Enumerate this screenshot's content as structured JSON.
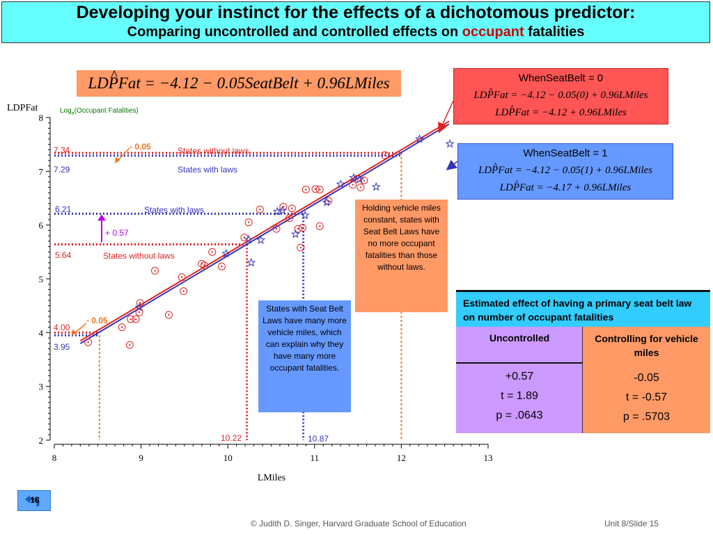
{
  "title": {
    "line1": "Developing your instinct for the effects of a dichotomous predictor:",
    "line2_before": "Comparing uncontrolled and controlled effects on ",
    "line2_accent": "occupant",
    "line2_after": " fatalities"
  },
  "equations": {
    "main": {
      "lhs": "LDPFat",
      "rhs": " = −4.12 − 0.05SeatBelt + 0.96LMiles"
    },
    "no_law": {
      "header": "WhenSeatBelt = 0",
      "line1_rhs": " = −4.12 − 0.05(0) + 0.96LMiles",
      "line2_rhs": " = −4.12 + 0.96LMiles"
    },
    "law": {
      "header": "WhenSeatBelt = 1",
      "line1_rhs": " = −4.12 − 0.05(1) + 0.96LMiles",
      "line2_rhs": " = −4.17 + 0.96LMiles"
    }
  },
  "notes": {
    "holding": "Holding vehicle miles constant, states with Seat Belt Laws have no more occupant fatalities than those without laws.",
    "laws": "States with Seat Belt Laws have many more vehicle miles, which can explain why they have many more occupant fatalities."
  },
  "estimate_table": {
    "header": "Estimated effect of having a primary seat belt law on number of occupant fatalities",
    "uncontrolled": {
      "label": "Uncontrolled",
      "estimate": "+0.57",
      "t": "t = 1.89",
      "p": "p = .0643"
    },
    "controlled": {
      "label": "Controlling for vehicle miles",
      "estimate": "-0.05",
      "t": "t = -0.57",
      "p": "p = .5703"
    }
  },
  "footer": {
    "slide_badge": "18",
    "credit": "© Judith D. Singer, Harvard Graduate School of Education",
    "unit": "Unit 8/Slide 15"
  },
  "colors": {
    "no_law": "#dd2222",
    "law": "#3333bb",
    "orange": "#ee7722",
    "purple": "#bb00ee",
    "title_bg": "#66ffff"
  },
  "chart_data": {
    "type": "scatter",
    "xlabel": "LMiles",
    "ylabel": "LDPFat",
    "ylabel_sub_prefix": "Log",
    "ylabel_sub_subscript": "e",
    "ylabel_sub_rest": "(Occupant Fatalities)",
    "xlim": [
      8,
      13
    ],
    "ylim": [
      2,
      8
    ],
    "xticks": [
      8,
      9,
      10,
      11,
      12,
      13
    ],
    "yticks": [
      2,
      3,
      4,
      5,
      6,
      7,
      8
    ],
    "series": [
      {
        "marker": "circle",
        "color": "#dd2222",
        "points": [
          [
            8.39,
            3.82
          ],
          [
            8.78,
            4.1
          ],
          [
            8.87,
            3.77
          ],
          [
            8.88,
            4.25
          ],
          [
            8.94,
            4.25
          ],
          [
            8.98,
            4.38
          ],
          [
            8.99,
            4.55
          ],
          [
            9.16,
            5.15
          ],
          [
            9.32,
            4.33
          ],
          [
            9.47,
            5.03
          ],
          [
            9.49,
            4.77
          ],
          [
            9.7,
            5.28
          ],
          [
            9.73,
            5.25
          ],
          [
            9.82,
            5.5
          ],
          [
            9.93,
            5.23
          ],
          [
            10.19,
            5.77
          ],
          [
            10.24,
            6.05
          ],
          [
            10.37,
            6.29
          ],
          [
            10.56,
            5.93
          ],
          [
            10.64,
            6.34
          ],
          [
            10.71,
            6.13
          ],
          [
            10.74,
            6.31
          ],
          [
            10.81,
            5.93
          ],
          [
            10.84,
            5.58
          ],
          [
            10.86,
            5.95
          ],
          [
            10.9,
            6.66
          ],
          [
            11.01,
            6.67
          ],
          [
            11.06,
            6.66
          ],
          [
            11.06,
            5.98
          ],
          [
            11.16,
            6.45
          ],
          [
            11.44,
            6.75
          ],
          [
            11.49,
            6.86
          ],
          [
            11.53,
            6.7
          ],
          [
            11.57,
            6.83
          ],
          [
            11.81,
            7.3
          ]
        ]
      },
      {
        "marker": "star",
        "color": "#3333bb",
        "points": [
          [
            8.98,
            4.47
          ],
          [
            9.98,
            5.47
          ],
          [
            10.24,
            5.73
          ],
          [
            10.27,
            5.3
          ],
          [
            10.38,
            5.72
          ],
          [
            10.57,
            6.25
          ],
          [
            10.63,
            6.27
          ],
          [
            10.78,
            5.83
          ],
          [
            10.89,
            6.18
          ],
          [
            11.14,
            6.42
          ],
          [
            11.3,
            6.76
          ],
          [
            11.45,
            6.88
          ],
          [
            11.52,
            6.85
          ],
          [
            11.71,
            6.71
          ],
          [
            12.21,
            7.6
          ],
          [
            12.56,
            7.51
          ]
        ]
      }
    ],
    "fit_lines": [
      {
        "name": "States without laws",
        "intercept": -4.12,
        "slope": 0.96,
        "x_range": [
          8.3,
          12.55
        ],
        "color": "#dd2222"
      },
      {
        "name": "States with laws",
        "intercept": -4.17,
        "slope": 0.96,
        "x_range": [
          8.3,
          12.55
        ],
        "color": "#3333bb"
      }
    ],
    "means": {
      "no_law_x": 10.22,
      "no_law_y": 5.64,
      "law_x": 10.87,
      "law_y": 6.21,
      "diff_label": "+ 0.57"
    },
    "controlled_comparisons": [
      {
        "x": 8.52,
        "y_no_law": 4.0,
        "y_law": 3.95,
        "diff_label": "- 0.05"
      },
      {
        "x": 12.0,
        "y_no_law": 7.34,
        "y_law": 7.29,
        "diff_label": "- 0.05"
      }
    ],
    "annotations": {
      "y_values": {
        "v734": "7.34",
        "v729": "7.29",
        "v621": "6.21",
        "v564": "5.64",
        "v400": "4.00",
        "v395": "3.95"
      },
      "x_values": {
        "v1022": "10.22",
        "v1087": "10.87"
      },
      "labels": {
        "no_law_top": "States without laws",
        "law_top": "States with laws",
        "law_mid": "States with laws",
        "no_law_mid": "States without laws"
      }
    }
  }
}
